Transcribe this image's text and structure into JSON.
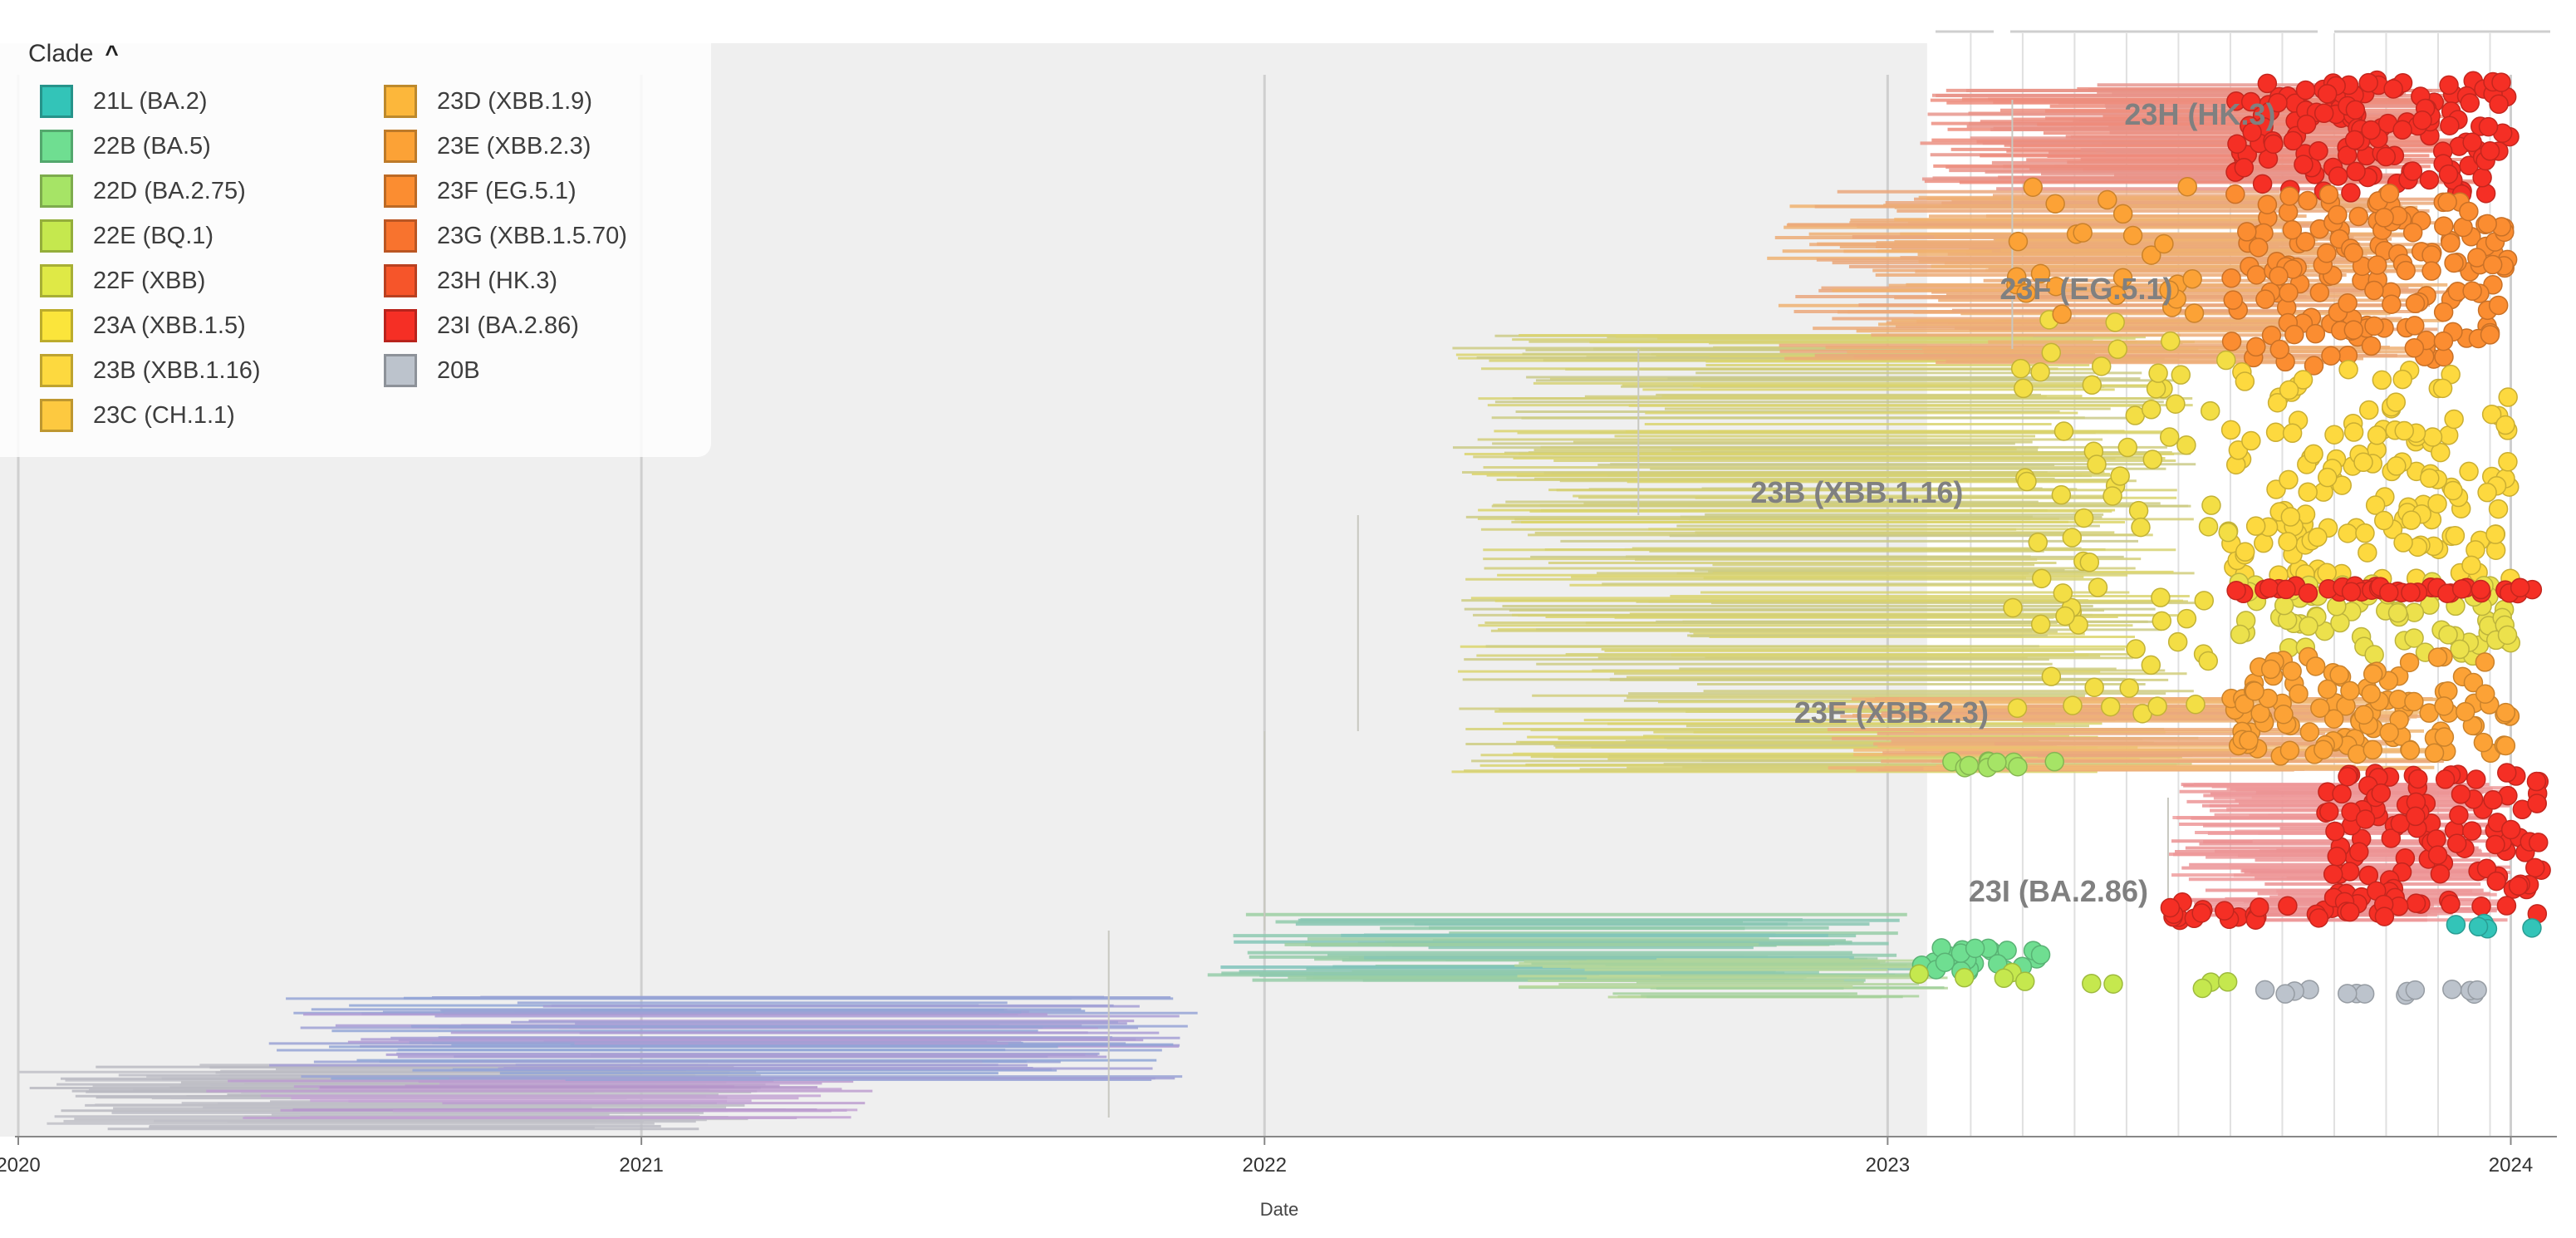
{
  "legend": {
    "title": "Clade",
    "toggle_glyph": "^",
    "items": [
      {
        "label": "21L (BA.2)",
        "color": "#33c4b8"
      },
      {
        "label": "22B (BA.5)",
        "color": "#6fde91"
      },
      {
        "label": "22D (BA.2.75)",
        "color": "#a6e466"
      },
      {
        "label": "22E (BQ.1)",
        "color": "#c5e84e"
      },
      {
        "label": "22F (XBB)",
        "color": "#dfe946"
      },
      {
        "label": "23A (XBB.1.5)",
        "color": "#fbe53b"
      },
      {
        "label": "23B (XBB.1.16)",
        "color": "#fdd93f"
      },
      {
        "label": "23C (CH.1.1)",
        "color": "#fdc940"
      },
      {
        "label": "23D (XBB.1.9)",
        "color": "#fcb73b"
      },
      {
        "label": "23E (XBB.2.3)",
        "color": "#fca236"
      },
      {
        "label": "23F (EG.5.1)",
        "color": "#fb8d31"
      },
      {
        "label": "23G (XBB.1.5.70)",
        "color": "#f8732e"
      },
      {
        "label": "23H (HK.3)",
        "color": "#f6552a"
      },
      {
        "label": "23I (BA.2.86)",
        "color": "#f52f25"
      },
      {
        "label": "20B",
        "color": "#bcc3cc"
      }
    ]
  },
  "chart_data": {
    "type": "phylogenetic-tree",
    "xlabel": "Date",
    "x_ticks": [
      "2020",
      "2021",
      "2022",
      "2023",
      "2024"
    ],
    "x_range": [
      2020.0,
      2024.05
    ],
    "highlighted_period": [
      2020.0,
      2023.05
    ],
    "clade_annotations": [
      {
        "label": "23H (HK.3)",
        "date": 2023.38
      },
      {
        "label": "23F (EG.5.1)",
        "date": 2023.18
      },
      {
        "label": "23B (XBB.1.16)",
        "date": 2022.78
      },
      {
        "label": "23E (XBB.2.3)",
        "date": 2022.85
      },
      {
        "label": "23I (BA.2.86)",
        "date": 2023.13
      }
    ]
  }
}
